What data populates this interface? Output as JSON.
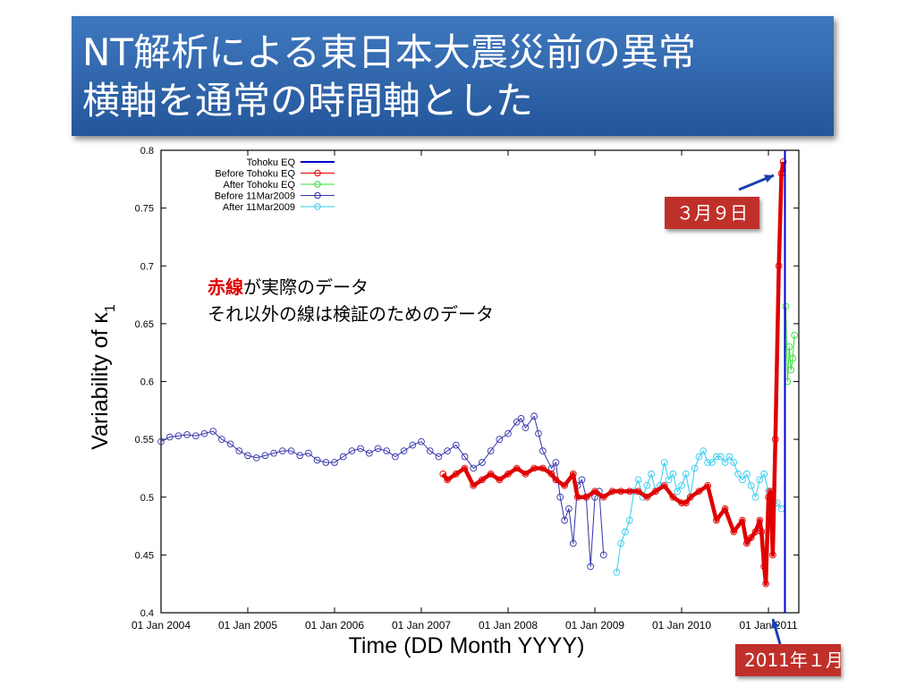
{
  "slide": {
    "title_line_1": "NT解析による東日本大震災前の異常",
    "title_line_2": "横軸を通常の時間軸とした",
    "note_red": "赤線",
    "note_line_1_rest": "が実際のデータ",
    "note_line_2": "それ以外の線は検証のためのデータ",
    "callout_mar9": "３月９日",
    "callout_jan2011": "2011年１月"
  },
  "chart_data": {
    "type": "line",
    "xlabel": "Time (DD Month YYYY)",
    "ylabel": "Variability of κ",
    "ylabel_subscript": "1",
    "ylim": [
      0.4,
      0.8
    ],
    "xlim": [
      2004.0,
      2011.35
    ],
    "xticks": [
      {
        "pos": 2004,
        "label": "01 Jan 2004"
      },
      {
        "pos": 2005,
        "label": "01 Jan 2005"
      },
      {
        "pos": 2006,
        "label": "01 Jan 2006"
      },
      {
        "pos": 2007,
        "label": "01 Jan 2007"
      },
      {
        "pos": 2008,
        "label": "01 Jan 2008"
      },
      {
        "pos": 2009,
        "label": "01 Jan 2009"
      },
      {
        "pos": 2010,
        "label": "01 Jan 2010"
      },
      {
        "pos": 2011,
        "label": "01 Jan 2011"
      }
    ],
    "yticks": [
      0.4,
      0.45,
      0.5,
      0.55,
      0.6,
      0.65,
      0.7,
      0.75,
      0.8
    ],
    "legend_position": "top-left",
    "colors": {
      "tohoku": "#0000cc",
      "before_tohoku": "#e00000",
      "after_tohoku": "#33dd33",
      "before_2009": "#3333aa",
      "after_2009": "#33ccee"
    },
    "tohoku_eq_x": 2011.19,
    "series": [
      {
        "name": "Tohoku EQ",
        "key": "tohoku",
        "style": "vline",
        "x": 2011.19
      },
      {
        "name": "Before Tohoku EQ",
        "key": "before_tohoku",
        "style": "thick",
        "x": [
          2007.25,
          2007.3,
          2007.4,
          2007.5,
          2007.6,
          2007.7,
          2007.8,
          2007.9,
          2008.0,
          2008.1,
          2008.2,
          2008.3,
          2008.4,
          2008.5,
          2008.55,
          2008.65,
          2008.75,
          2008.8,
          2008.9,
          2009.0,
          2009.1,
          2009.2,
          2009.3,
          2009.4,
          2009.5,
          2009.6,
          2009.7,
          2009.8,
          2009.9,
          2010.0,
          2010.05,
          2010.1,
          2010.2,
          2010.3,
          2010.4,
          2010.5,
          2010.6,
          2010.7,
          2010.75,
          2010.8,
          2010.85,
          2010.9,
          2010.92,
          2010.95,
          2010.97,
          2011.0,
          2011.02,
          2011.05,
          2011.08,
          2011.12,
          2011.15,
          2011.17
        ],
        "y": [
          0.52,
          0.515,
          0.52,
          0.525,
          0.51,
          0.515,
          0.52,
          0.515,
          0.52,
          0.525,
          0.52,
          0.525,
          0.525,
          0.52,
          0.515,
          0.51,
          0.52,
          0.5,
          0.5,
          0.505,
          0.5,
          0.505,
          0.505,
          0.505,
          0.505,
          0.5,
          0.505,
          0.51,
          0.5,
          0.495,
          0.495,
          0.5,
          0.505,
          0.51,
          0.48,
          0.49,
          0.47,
          0.48,
          0.46,
          0.465,
          0.47,
          0.48,
          0.47,
          0.44,
          0.425,
          0.5,
          0.505,
          0.45,
          0.55,
          0.7,
          0.78,
          0.79
        ]
      },
      {
        "name": "After Tohoku EQ",
        "key": "after_tohoku",
        "style": "thin",
        "x": [
          2011.2,
          2011.22,
          2011.24,
          2011.26,
          2011.28,
          2011.3
        ],
        "y": [
          0.665,
          0.6,
          0.63,
          0.61,
          0.62,
          0.64
        ]
      },
      {
        "name": "Before 11Mar2009",
        "key": "before_2009",
        "style": "thin",
        "x": [
          2004.0,
          2004.1,
          2004.2,
          2004.3,
          2004.4,
          2004.5,
          2004.6,
          2004.7,
          2004.8,
          2004.9,
          2005.0,
          2005.1,
          2005.2,
          2005.3,
          2005.4,
          2005.5,
          2005.6,
          2005.7,
          2005.8,
          2005.9,
          2006.0,
          2006.1,
          2006.2,
          2006.3,
          2006.4,
          2006.5,
          2006.6,
          2006.7,
          2006.8,
          2006.9,
          2007.0,
          2007.1,
          2007.2,
          2007.3,
          2007.4,
          2007.5,
          2007.6,
          2007.7,
          2007.8,
          2007.9,
          2008.0,
          2008.1,
          2008.15,
          2008.2,
          2008.3,
          2008.35,
          2008.4,
          2008.5,
          2008.55,
          2008.6,
          2008.65,
          2008.7,
          2008.75,
          2008.8,
          2008.85,
          2008.9,
          2008.95,
          2009.0,
          2009.05,
          2009.1
        ],
        "y": [
          0.548,
          0.552,
          0.553,
          0.554,
          0.553,
          0.555,
          0.557,
          0.55,
          0.546,
          0.54,
          0.536,
          0.534,
          0.536,
          0.538,
          0.54,
          0.54,
          0.536,
          0.538,
          0.532,
          0.53,
          0.53,
          0.535,
          0.54,
          0.542,
          0.538,
          0.542,
          0.54,
          0.535,
          0.54,
          0.545,
          0.548,
          0.54,
          0.535,
          0.54,
          0.545,
          0.535,
          0.525,
          0.53,
          0.54,
          0.55,
          0.555,
          0.565,
          0.568,
          0.56,
          0.57,
          0.555,
          0.54,
          0.525,
          0.53,
          0.5,
          0.48,
          0.49,
          0.46,
          0.51,
          0.515,
          0.5,
          0.44,
          0.5,
          0.505,
          0.45
        ]
      },
      {
        "name": "After 11Mar2009",
        "key": "after_2009",
        "style": "thin",
        "x": [
          2009.25,
          2009.3,
          2009.35,
          2009.4,
          2009.45,
          2009.5,
          2009.55,
          2009.6,
          2009.65,
          2009.7,
          2009.75,
          2009.8,
          2009.85,
          2009.9,
          2009.95,
          2010.0,
          2010.05,
          2010.1,
          2010.15,
          2010.2,
          2010.25,
          2010.3,
          2010.35,
          2010.4,
          2010.45,
          2010.5,
          2010.55,
          2010.6,
          2010.65,
          2010.7,
          2010.75,
          2010.8,
          2010.85,
          2010.9,
          2010.95,
          2011.0,
          2011.05,
          2011.1,
          2011.15
        ],
        "y": [
          0.435,
          0.46,
          0.47,
          0.48,
          0.505,
          0.515,
          0.5,
          0.51,
          0.52,
          0.505,
          0.51,
          0.53,
          0.515,
          0.52,
          0.505,
          0.51,
          0.52,
          0.5,
          0.525,
          0.535,
          0.54,
          0.53,
          0.53,
          0.535,
          0.535,
          0.53,
          0.535,
          0.53,
          0.52,
          0.515,
          0.52,
          0.51,
          0.5,
          0.515,
          0.52,
          0.505,
          0.5,
          0.495,
          0.49
        ]
      }
    ]
  }
}
